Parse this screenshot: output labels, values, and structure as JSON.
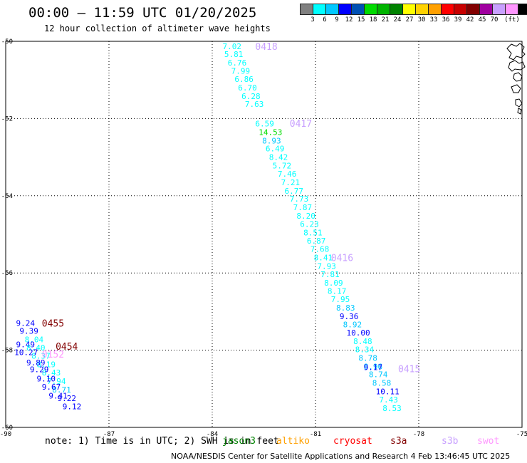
{
  "title": "00:00 – 11:59 UTC 01/20/2025",
  "subtitle": "12 hour collection of altimeter wave heights",
  "legend": {
    "colors": [
      "#808080",
      "#00ffff",
      "#00c8ff",
      "#0000ff",
      "#0050b4",
      "#00dc00",
      "#00b400",
      "#008200",
      "#ffff00",
      "#ffd200",
      "#ffa000",
      "#ff0000",
      "#c80000",
      "#820000",
      "#a000a0",
      "#c8a0ff",
      "#ff96ff",
      "#000000"
    ],
    "labels": [
      "3",
      "6",
      "9",
      "12",
      "15",
      "18",
      "21",
      "24",
      "27",
      "30",
      "33",
      "36",
      "39",
      "42",
      "45",
      "70",
      "(ft)"
    ]
  },
  "chart_data": {
    "type": "scatter",
    "title": "00:00 – 11:59 UTC 01/20/2025",
    "subtitle": "12 hour collection of altimeter wave heights",
    "xlim": [
      -90,
      -75
    ],
    "ylim": [
      -60,
      -50
    ],
    "grid": true,
    "x_ticks": [
      "-90",
      "-87",
      "-84",
      "-81",
      "-78",
      "-75"
    ],
    "y_ticks": [
      "-50",
      "-52",
      "-54",
      "-56",
      "-58",
      "-60"
    ],
    "observations": [
      {
        "lon": -83.7,
        "lat": -50.13,
        "v": "7.02",
        "c": "#00ffff"
      },
      {
        "lon": -83.65,
        "lat": -50.33,
        "v": "5.81",
        "c": "#00ffff"
      },
      {
        "lon": -83.55,
        "lat": -50.55,
        "v": "6.76",
        "c": "#00ffff"
      },
      {
        "lon": -83.45,
        "lat": -50.77,
        "v": "7.99",
        "c": "#00ffff"
      },
      {
        "lon": -83.35,
        "lat": -50.98,
        "v": "6.86",
        "c": "#00ffff"
      },
      {
        "lon": -83.25,
        "lat": -51.2,
        "v": "6.70",
        "c": "#00ffff"
      },
      {
        "lon": -83.15,
        "lat": -51.42,
        "v": "6.28",
        "c": "#00ffff"
      },
      {
        "lon": -83.05,
        "lat": -51.62,
        "v": "7.63",
        "c": "#00ffff"
      },
      {
        "lon": -82.75,
        "lat": -52.13,
        "v": "6.59",
        "c": "#00ffff"
      },
      {
        "lon": -82.65,
        "lat": -52.35,
        "v": "14.53",
        "c": "#00dc00"
      },
      {
        "lon": -82.55,
        "lat": -52.57,
        "v": "8.93",
        "c": "#00c8ff"
      },
      {
        "lon": -82.45,
        "lat": -52.78,
        "v": "6.49",
        "c": "#00ffff"
      },
      {
        "lon": -82.35,
        "lat": -53.0,
        "v": "8.42",
        "c": "#00ffff"
      },
      {
        "lon": -82.25,
        "lat": -53.22,
        "v": "5.72",
        "c": "#00ffff"
      },
      {
        "lon": -82.1,
        "lat": -53.43,
        "v": "7.46",
        "c": "#00ffff"
      },
      {
        "lon": -82.0,
        "lat": -53.65,
        "v": "7.21",
        "c": "#00ffff"
      },
      {
        "lon": -81.9,
        "lat": -53.87,
        "v": "6.77",
        "c": "#00ffff"
      },
      {
        "lon": -81.75,
        "lat": -54.08,
        "v": "7.73",
        "c": "#00ffff"
      },
      {
        "lon": -81.65,
        "lat": -54.3,
        "v": "7.87",
        "c": "#00ffff"
      },
      {
        "lon": -81.55,
        "lat": -54.52,
        "v": "8.20",
        "c": "#00ffff"
      },
      {
        "lon": -81.45,
        "lat": -54.73,
        "v": "6.23",
        "c": "#00ffff"
      },
      {
        "lon": -81.35,
        "lat": -54.95,
        "v": "8.51",
        "c": "#00ffff"
      },
      {
        "lon": -81.25,
        "lat": -55.17,
        "v": "6.87",
        "c": "#00ffff"
      },
      {
        "lon": -81.15,
        "lat": -55.38,
        "v": "7.68",
        "c": "#00ffff"
      },
      {
        "lon": -81.05,
        "lat": -55.6,
        "v": "8.41",
        "c": "#00ffff"
      },
      {
        "lon": -80.95,
        "lat": -55.82,
        "v": "7.93",
        "c": "#00ffff"
      },
      {
        "lon": -80.85,
        "lat": -56.03,
        "v": "7.81",
        "c": "#00ffff"
      },
      {
        "lon": -80.75,
        "lat": -56.25,
        "v": "8.09",
        "c": "#00ffff"
      },
      {
        "lon": -80.65,
        "lat": -56.47,
        "v": "8.17",
        "c": "#00ffff"
      },
      {
        "lon": -80.55,
        "lat": -56.68,
        "v": "7.95",
        "c": "#00ffff"
      },
      {
        "lon": -80.4,
        "lat": -56.9,
        "v": "8.83",
        "c": "#00c8ff"
      },
      {
        "lon": -80.3,
        "lat": -57.12,
        "v": "9.36",
        "c": "#0000ff"
      },
      {
        "lon": -80.2,
        "lat": -57.33,
        "v": "8.92",
        "c": "#00c8ff"
      },
      {
        "lon": -80.1,
        "lat": -57.55,
        "v": "10.00",
        "c": "#0000ff"
      },
      {
        "lon": -79.9,
        "lat": -57.77,
        "v": "8.48",
        "c": "#00ffff"
      },
      {
        "lon": -79.85,
        "lat": -57.98,
        "v": "8.34",
        "c": "#00ffff"
      },
      {
        "lon": -79.75,
        "lat": -58.2,
        "v": "8.78",
        "c": "#00c8ff"
      },
      {
        "lon": -79.6,
        "lat": -58.42,
        "v": "8.96",
        "c": "#00c8ff"
      },
      {
        "lon": -79.6,
        "lat": -58.44,
        "v": "9.17",
        "c": "#0000ff"
      },
      {
        "lon": -79.45,
        "lat": -58.63,
        "v": "8.74",
        "c": "#00c8ff"
      },
      {
        "lon": -79.35,
        "lat": -58.85,
        "v": "8.58",
        "c": "#00c8ff"
      },
      {
        "lon": -79.25,
        "lat": -59.07,
        "v": "10.11",
        "c": "#0000ff"
      },
      {
        "lon": -79.15,
        "lat": -59.28,
        "v": "7.43",
        "c": "#00ffff"
      },
      {
        "lon": -79.05,
        "lat": -59.5,
        "v": "8.53",
        "c": "#00ffff"
      },
      {
        "lon": -89.7,
        "lat": -57.3,
        "v": "9.24",
        "c": "#0000ff"
      },
      {
        "lon": -89.6,
        "lat": -57.5,
        "v": "9.39",
        "c": "#0000ff"
      },
      {
        "lon": -89.45,
        "lat": -57.72,
        "v": "8.04",
        "c": "#00ffff"
      },
      {
        "lon": -89.7,
        "lat": -57.85,
        "v": "9.49",
        "c": "#0000ff"
      },
      {
        "lon": -89.4,
        "lat": -57.93,
        "v": "8.40",
        "c": "#00ffff"
      },
      {
        "lon": -89.25,
        "lat": -58.15,
        "v": "8.37",
        "c": "#00ffff"
      },
      {
        "lon": -89.75,
        "lat": -58.05,
        "v": "10.27",
        "c": "#0000ff"
      },
      {
        "lon": -89.1,
        "lat": -58.37,
        "v": "8.19",
        "c": "#00ffff"
      },
      {
        "lon": -89.4,
        "lat": -58.32,
        "v": "9.89",
        "c": "#0000ff"
      },
      {
        "lon": -88.95,
        "lat": -58.58,
        "v": "8.43",
        "c": "#00ffff"
      },
      {
        "lon": -89.3,
        "lat": -58.5,
        "v": "9.29",
        "c": "#0000ff"
      },
      {
        "lon": -88.8,
        "lat": -58.8,
        "v": "7.94",
        "c": "#00ffff"
      },
      {
        "lon": -89.1,
        "lat": -58.74,
        "v": "9.10",
        "c": "#0000ff"
      },
      {
        "lon": -88.65,
        "lat": -59.02,
        "v": "8.71",
        "c": "#00c8ff"
      },
      {
        "lon": -88.95,
        "lat": -58.95,
        "v": "9.67",
        "c": "#0000ff"
      },
      {
        "lon": -88.5,
        "lat": -59.24,
        "v": "9.22",
        "c": "#0000ff"
      },
      {
        "lon": -88.75,
        "lat": -59.18,
        "v": "9.41",
        "c": "#0000ff"
      },
      {
        "lon": -88.35,
        "lat": -59.46,
        "v": "9.12",
        "c": "#0000ff"
      }
    ],
    "track_labels": [
      {
        "lon": -82.75,
        "lat": -50.13,
        "text": "0418",
        "c": "#c8a0ff"
      },
      {
        "lon": -81.75,
        "lat": -52.12,
        "text": "0417",
        "c": "#c8a0ff"
      },
      {
        "lon": -80.55,
        "lat": -55.6,
        "text": "0416",
        "c": "#c8a0ff"
      },
      {
        "lon": -78.6,
        "lat": -58.48,
        "text": "0415",
        "c": "#c8a0ff"
      },
      {
        "lon": -88.95,
        "lat": -57.3,
        "text": "0455",
        "c": "#820000"
      },
      {
        "lon": -88.55,
        "lat": -57.9,
        "text": "0454",
        "c": "#820000"
      },
      {
        "lon": -88.95,
        "lat": -58.1,
        "text": "0152",
        "c": "#ff96ff"
      }
    ]
  },
  "note": "note: 1) Time is in UTC; 2) SWH is in feet",
  "satellites": [
    {
      "name": "jason3",
      "color": "#008200"
    },
    {
      "name": "altiko",
      "color": "#ffa000"
    },
    {
      "name": "cryosat",
      "color": "#ff0000"
    },
    {
      "name": "s3a",
      "color": "#820000"
    },
    {
      "name": "s3b",
      "color": "#c8a0ff"
    },
    {
      "name": "swot",
      "color": "#ff96ff"
    }
  ],
  "credit": "NOAA/NESDIS Center for Satellite Applications and Research     4 Feb 13:46:45 UTC 2025"
}
